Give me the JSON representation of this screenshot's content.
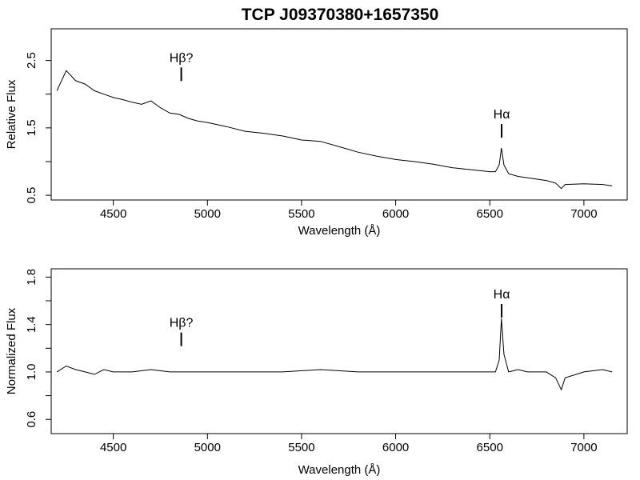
{
  "figure_title": "TCP J09370380+1657350",
  "chart_data": [
    {
      "type": "line",
      "title": "TCP J09370380+1657350",
      "xlabel": "Wavelength (Å)",
      "ylabel": "Relative Flux",
      "xlim": [
        4170,
        7230
      ],
      "ylim": [
        0.43,
        2.97
      ],
      "x_ticks": [
        4500,
        5000,
        5500,
        6000,
        6500,
        7000
      ],
      "x_tick_labels": [
        "4500",
        "5000",
        "5500",
        "6000",
        "6500",
        "7000"
      ],
      "y_ticks": [
        0.5,
        1.0,
        1.5,
        2.0,
        2.5
      ],
      "y_tick_labels": [
        "0.5",
        "",
        "1.5",
        "",
        "2.5"
      ],
      "grid": false,
      "series": [
        {
          "x": [
            4200,
            4250,
            4300,
            4350,
            4400,
            4450,
            4500,
            4550,
            4600,
            4650,
            4700,
            4750,
            4800,
            4850,
            4900,
            4950,
            5000,
            5100,
            5200,
            5300,
            5400,
            5500,
            5600,
            5700,
            5800,
            5900,
            6000,
            6100,
            6200,
            6300,
            6400,
            6500,
            6530,
            6550,
            6562,
            6575,
            6600,
            6650,
            6700,
            6800,
            6850,
            6880,
            6900,
            7000,
            7100,
            7150
          ],
          "y": [
            2.05,
            2.35,
            2.2,
            2.15,
            2.05,
            2.0,
            1.95,
            1.92,
            1.88,
            1.85,
            1.9,
            1.8,
            1.72,
            1.7,
            1.64,
            1.6,
            1.58,
            1.52,
            1.45,
            1.42,
            1.38,
            1.32,
            1.3,
            1.22,
            1.14,
            1.08,
            1.03,
            1.0,
            0.96,
            0.91,
            0.88,
            0.85,
            0.85,
            0.95,
            1.2,
            0.95,
            0.82,
            0.78,
            0.76,
            0.72,
            0.68,
            0.6,
            0.66,
            0.67,
            0.66,
            0.64
          ]
        }
      ],
      "annotations": [
        {
          "text": "Hβ?",
          "x": 4861,
          "y": 2.48
        },
        {
          "text": "Hα",
          "x": 6563,
          "y": 1.64
        }
      ]
    },
    {
      "type": "line",
      "xlabel": "Wavelength (Å)",
      "ylabel": "Normalized Flux",
      "xlim": [
        4170,
        7230
      ],
      "ylim": [
        0.48,
        1.87
      ],
      "x_ticks": [
        4500,
        5000,
        5500,
        6000,
        6500,
        7000
      ],
      "x_tick_labels": [
        "4500",
        "5000",
        "5500",
        "6000",
        "6500",
        "7000"
      ],
      "y_ticks": [
        0.6,
        0.8,
        1.0,
        1.2,
        1.4,
        1.6,
        1.8
      ],
      "y_tick_labels": [
        "0.6",
        "",
        "1.0",
        "",
        "1.4",
        "",
        "1.8"
      ],
      "grid": false,
      "series": [
        {
          "x": [
            4200,
            4250,
            4300,
            4350,
            4400,
            4450,
            4500,
            4600,
            4700,
            4800,
            4900,
            5000,
            5200,
            5400,
            5600,
            5800,
            6000,
            6200,
            6400,
            6500,
            6530,
            6550,
            6562,
            6575,
            6600,
            6650,
            6700,
            6800,
            6850,
            6880,
            6900,
            7000,
            7100,
            7150
          ],
          "y": [
            1.0,
            1.05,
            1.02,
            1.0,
            0.98,
            1.02,
            1.0,
            1.0,
            1.02,
            1.0,
            1.0,
            1.0,
            1.0,
            1.0,
            1.02,
            1.0,
            1.0,
            1.0,
            1.0,
            1.0,
            1.0,
            1.1,
            1.45,
            1.15,
            1.0,
            1.02,
            1.0,
            1.0,
            0.95,
            0.85,
            0.95,
            1.0,
            1.02,
            1.0
          ]
        }
      ],
      "annotations": [
        {
          "text": "Hβ?",
          "x": 4861,
          "y": 1.38
        },
        {
          "text": "Hα",
          "x": 6563,
          "y": 1.62
        }
      ]
    }
  ]
}
